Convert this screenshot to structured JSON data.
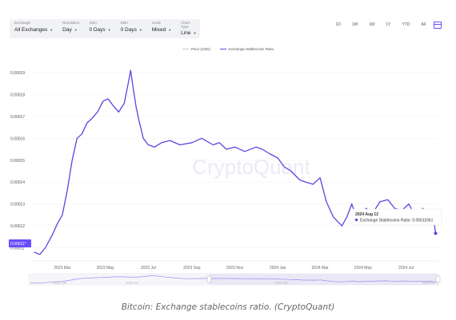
{
  "toolbar": {
    "controls": [
      {
        "label": "Exchange",
        "value": "All Exchanges"
      },
      {
        "label": "Resolution",
        "value": "Day"
      },
      {
        "label": "SMA",
        "value": "0 Days"
      },
      {
        "label": "EMA",
        "value": "0 Days"
      },
      {
        "label": "Scale",
        "value": "Mixed"
      },
      {
        "label": "Chart Type",
        "value": "Line"
      }
    ]
  },
  "ranges": [
    "1D",
    "1W",
    "1M",
    "1Y",
    "YTD",
    "All"
  ],
  "colors": {
    "series": "#5b45e0",
    "price": "#c8c8c8",
    "accent": "#6a4cff"
  },
  "watermark": "CryptoQuant",
  "caption": "Bitcoin: Exchange stablecoins ratio. (CryptoQuant)",
  "chart_data": {
    "type": "line",
    "title": "",
    "legend": [
      "Price (USD)",
      "Exchange Stablecoins Ratio"
    ],
    "legend_position": "top-center",
    "y_ticks": [
      "0.00019",
      "0.00018",
      "0.00017",
      "0.00016",
      "0.00015",
      "0.00014",
      "0.00013",
      "0.00012",
      "0.00011"
    ],
    "ylim": [
      0.000104,
      0.000194
    ],
    "x_ticks": [
      "2023 Mar",
      "2023 May",
      "2023 Jul",
      "2023 Sep",
      "2023 Nov",
      "2024 Jan",
      "2024 Mar",
      "2024 May",
      "2024 Jul"
    ],
    "current_value_label": "0.00011*",
    "tooltip": {
      "date": "2024 Aug 12",
      "series": "Exchange Stablecoins Ratio",
      "value": "0.00011661"
    },
    "navigator_labels": [
      "2023 Jan",
      "2023 Jul",
      "2024 Jan",
      "2024 Jul"
    ],
    "series": [
      {
        "name": "Exchange Stablecoins Ratio",
        "x": [
          "2023-01-20",
          "2023-01-28",
          "2023-02-05",
          "2023-02-15",
          "2023-02-22",
          "2023-03-01",
          "2023-03-08",
          "2023-03-15",
          "2023-03-22",
          "2023-03-29",
          "2023-04-05",
          "2023-04-12",
          "2023-04-20",
          "2023-04-28",
          "2023-05-05",
          "2023-05-12",
          "2023-05-20",
          "2023-05-28",
          "2023-06-02",
          "2023-06-06",
          "2023-06-10",
          "2023-06-14",
          "2023-06-18",
          "2023-06-24",
          "2023-07-01",
          "2023-07-10",
          "2023-07-20",
          "2023-08-01",
          "2023-08-15",
          "2023-09-01",
          "2023-09-15",
          "2023-10-01",
          "2023-10-10",
          "2023-10-20",
          "2023-11-01",
          "2023-11-15",
          "2023-12-01",
          "2023-12-10",
          "2023-12-20",
          "2024-01-01",
          "2024-01-10",
          "2024-01-20",
          "2024-02-01",
          "2024-02-10",
          "2024-02-20",
          "2024-03-01",
          "2024-03-10",
          "2024-03-20",
          "2024-04-01",
          "2024-04-08",
          "2024-04-15",
          "2024-04-25",
          "2024-05-05",
          "2024-05-15",
          "2024-05-25",
          "2024-06-05",
          "2024-06-15",
          "2024-06-25",
          "2024-07-05",
          "2024-07-15",
          "2024-07-25",
          "2024-08-01",
          "2024-08-08",
          "2024-08-12"
        ],
        "values": [
          0.000108,
          0.000107,
          0.00011,
          0.000116,
          0.000121,
          0.000125,
          0.000136,
          0.00015,
          0.00016,
          0.000162,
          0.000167,
          0.000169,
          0.000172,
          0.000177,
          0.000178,
          0.000175,
          0.000172,
          0.000176,
          0.000184,
          0.000191,
          0.000182,
          0.000174,
          0.000168,
          0.00016,
          0.000157,
          0.000156,
          0.000158,
          0.000159,
          0.000157,
          0.000158,
          0.00016,
          0.000157,
          0.000158,
          0.000155,
          0.000156,
          0.000154,
          0.000156,
          0.000155,
          0.000153,
          0.000151,
          0.000147,
          0.000145,
          0.000141,
          0.00014,
          0.000139,
          0.000142,
          0.000131,
          0.000124,
          0.00012,
          0.000124,
          0.00013,
          0.000121,
          0.000128,
          0.000126,
          0.000131,
          0.000132,
          0.000128,
          0.000127,
          0.00013,
          0.000124,
          0.000128,
          0.000123,
          0.000126,
          0.0001166
        ]
      }
    ]
  }
}
